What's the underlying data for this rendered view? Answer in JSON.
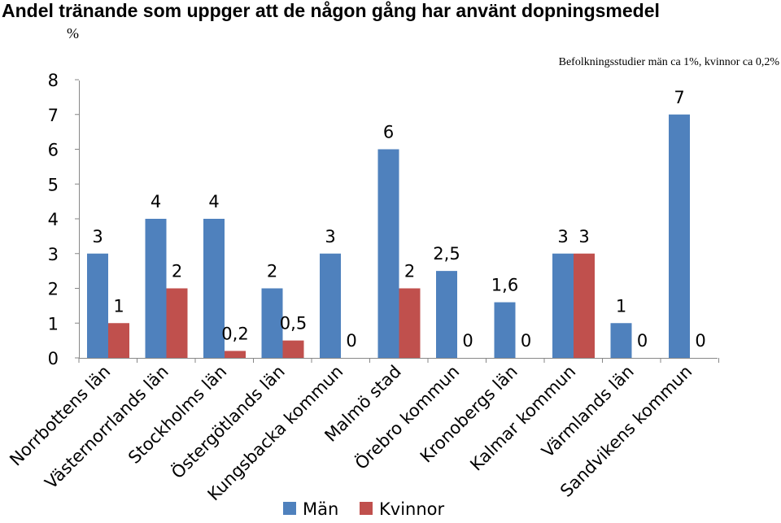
{
  "chart_data": {
    "type": "bar",
    "title": "Andel tränande som uppger att de någon gång har använt dopningsmedel",
    "unit_label": "%",
    "note": "Befolkningsstudier män ca 1%, kvinnor ca 0,2%",
    "categories": [
      "Norrbottens län",
      "Västernorrlands län",
      "Stockholms län",
      "Östergötlands län",
      "Kungsbacka kommun",
      "Malmö stad",
      "Örebro kommun",
      "Kronobergs län",
      "Kalmar kommun",
      "Värmlands län",
      "Sandvikens kommun"
    ],
    "series": [
      {
        "name": "Män",
        "color": "#4f81bd",
        "values": [
          3,
          4,
          4,
          2,
          3,
          6,
          2.5,
          1.6,
          3,
          1,
          7
        ],
        "labels": [
          "3",
          "4",
          "4",
          "2",
          "3",
          "6",
          "2,5",
          "1,6",
          "3",
          "1",
          "7"
        ]
      },
      {
        "name": "Kvinnor",
        "color": "#c0504d",
        "values": [
          1,
          2,
          0.2,
          0.5,
          0,
          2,
          0,
          0,
          3,
          0,
          0
        ],
        "labels": [
          "1",
          "2",
          "0,2",
          "0,5",
          "0",
          "2",
          "0",
          "0",
          "3",
          "0",
          "0"
        ]
      }
    ],
    "y_ticks": [
      "0",
      "1",
      "2",
      "3",
      "4",
      "5",
      "6",
      "7",
      "8"
    ],
    "ylim": [
      0,
      8
    ],
    "xlabel": "",
    "ylabel": "%",
    "grid": false,
    "legend_position": "bottom"
  }
}
